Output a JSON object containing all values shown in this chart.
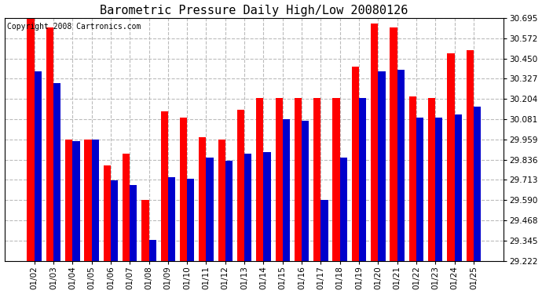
{
  "title": "Barometric Pressure Daily High/Low 20080126",
  "copyright": "Copyright 2008 Cartronics.com",
  "dates": [
    "01/02",
    "01/03",
    "01/04",
    "01/05",
    "01/06",
    "01/07",
    "01/08",
    "01/09",
    "01/10",
    "01/11",
    "01/12",
    "01/13",
    "01/14",
    "01/15",
    "01/16",
    "01/17",
    "01/18",
    "01/19",
    "01/20",
    "01/21",
    "01/22",
    "01/23",
    "01/24",
    "01/25"
  ],
  "highs": [
    30.695,
    30.64,
    29.96,
    29.96,
    29.8,
    29.87,
    29.59,
    30.13,
    30.09,
    29.97,
    29.96,
    30.14,
    30.21,
    30.21,
    30.21,
    30.21,
    30.21,
    30.4,
    30.66,
    30.64,
    30.22,
    30.21,
    30.48,
    30.5
  ],
  "lows": [
    30.37,
    30.3,
    29.95,
    29.96,
    29.71,
    29.68,
    29.35,
    29.73,
    29.72,
    29.85,
    29.83,
    29.87,
    29.88,
    30.08,
    30.07,
    29.59,
    29.85,
    30.21,
    30.37,
    30.38,
    30.09,
    30.09,
    30.11,
    30.16
  ],
  "high_color": "#ff0000",
  "low_color": "#0000cc",
  "bg_color": "#ffffff",
  "grid_color": "#bbbbbb",
  "ymin": 29.222,
  "ymax": 30.695,
  "yticks": [
    29.222,
    29.345,
    29.468,
    29.59,
    29.713,
    29.836,
    29.959,
    30.081,
    30.204,
    30.327,
    30.45,
    30.572,
    30.695
  ],
  "title_fontsize": 11,
  "tick_fontsize": 7.5,
  "copyright_fontsize": 7,
  "bar_width": 0.38
}
